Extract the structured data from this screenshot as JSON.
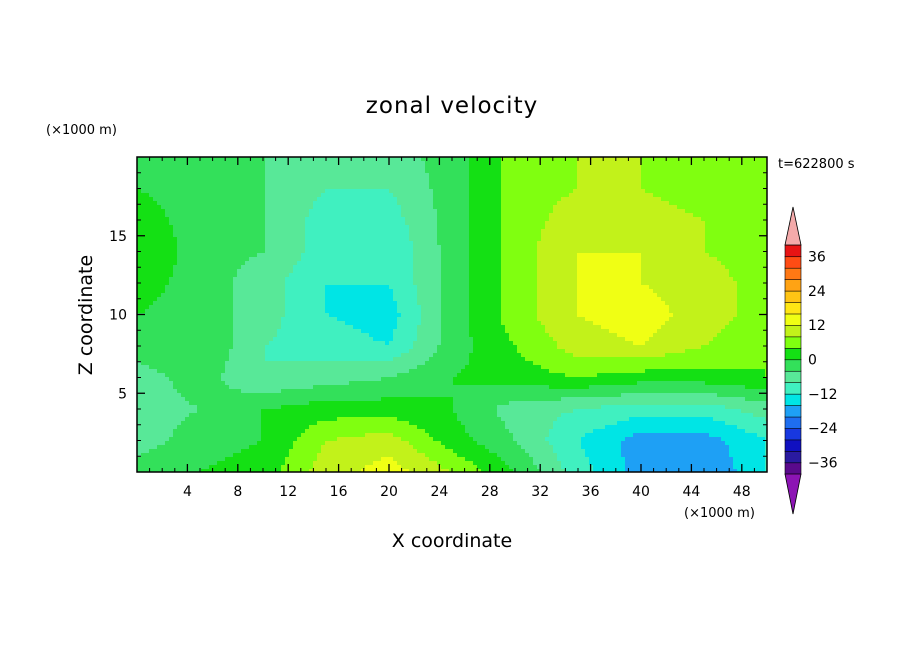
{
  "chart_data": {
    "type": "heatmap",
    "title": "zonal velocity",
    "xlabel": "X coordinate",
    "ylabel": "Z coordinate",
    "x_unit": "(×1000 m)",
    "y_unit": "(×1000 m)",
    "time_label": "t=622800 s",
    "xlim": [
      0,
      50
    ],
    "ylim": [
      0,
      20
    ],
    "x_ticks": [
      4,
      8,
      12,
      16,
      20,
      24,
      28,
      32,
      36,
      40,
      44,
      48
    ],
    "y_ticks": [
      5,
      10,
      15
    ],
    "colorbar": {
      "min": -40,
      "max": 40,
      "step": 4,
      "tick_values": [
        36,
        24,
        12,
        0,
        -12,
        -24,
        -36
      ],
      "colors": [
        "#5a0a8c",
        "#2a1aa0",
        "#1010c0",
        "#1838e0",
        "#1e6ef0",
        "#1ea0f5",
        "#00e5e5",
        "#40f0c0",
        "#58e898",
        "#33e05a",
        "#14e014",
        "#80ff10",
        "#c2f21a",
        "#f0ff14",
        "#ffe614",
        "#ffc414",
        "#ffa314",
        "#ff7814",
        "#ff4c14",
        "#e81414"
      ],
      "over_color": "#f4aaaa",
      "under_color": "#8c14b4"
    },
    "grid": {
      "x": [
        0,
        5,
        10,
        15,
        20,
        25,
        30,
        35,
        40,
        45,
        50
      ],
      "z": [
        0,
        2,
        4,
        6,
        8,
        10,
        12,
        14,
        16,
        18,
        20
      ],
      "values": [
        [
          -2,
          0,
          2,
          10,
          14,
          8,
          0,
          -10,
          -18,
          -20,
          -12
        ],
        [
          -6,
          -2,
          0,
          8,
          10,
          2,
          -4,
          -12,
          -18,
          -18,
          -12
        ],
        [
          -6,
          -4,
          0,
          2,
          2,
          0,
          -6,
          -8,
          -10,
          -10,
          -6
        ],
        [
          -6,
          -2,
          -8,
          -6,
          -4,
          0,
          2,
          4,
          2,
          2,
          4
        ],
        [
          -2,
          0,
          -8,
          -10,
          -12,
          -2,
          4,
          10,
          12,
          8,
          4
        ],
        [
          0,
          -2,
          -6,
          -12,
          -14,
          -2,
          6,
          12,
          14,
          10,
          6
        ],
        [
          2,
          -2,
          -6,
          -12,
          -12,
          -2,
          6,
          12,
          12,
          10,
          6
        ],
        [
          4,
          -2,
          -4,
          -10,
          -12,
          -2,
          6,
          12,
          12,
          8,
          6
        ],
        [
          2,
          -2,
          -4,
          -10,
          -10,
          -2,
          6,
          10,
          10,
          8,
          6
        ],
        [
          0,
          -2,
          -4,
          -8,
          -8,
          -2,
          6,
          8,
          8,
          6,
          6
        ],
        [
          0,
          -2,
          -4,
          -8,
          -6,
          -2,
          6,
          8,
          8,
          6,
          6
        ]
      ]
    }
  }
}
